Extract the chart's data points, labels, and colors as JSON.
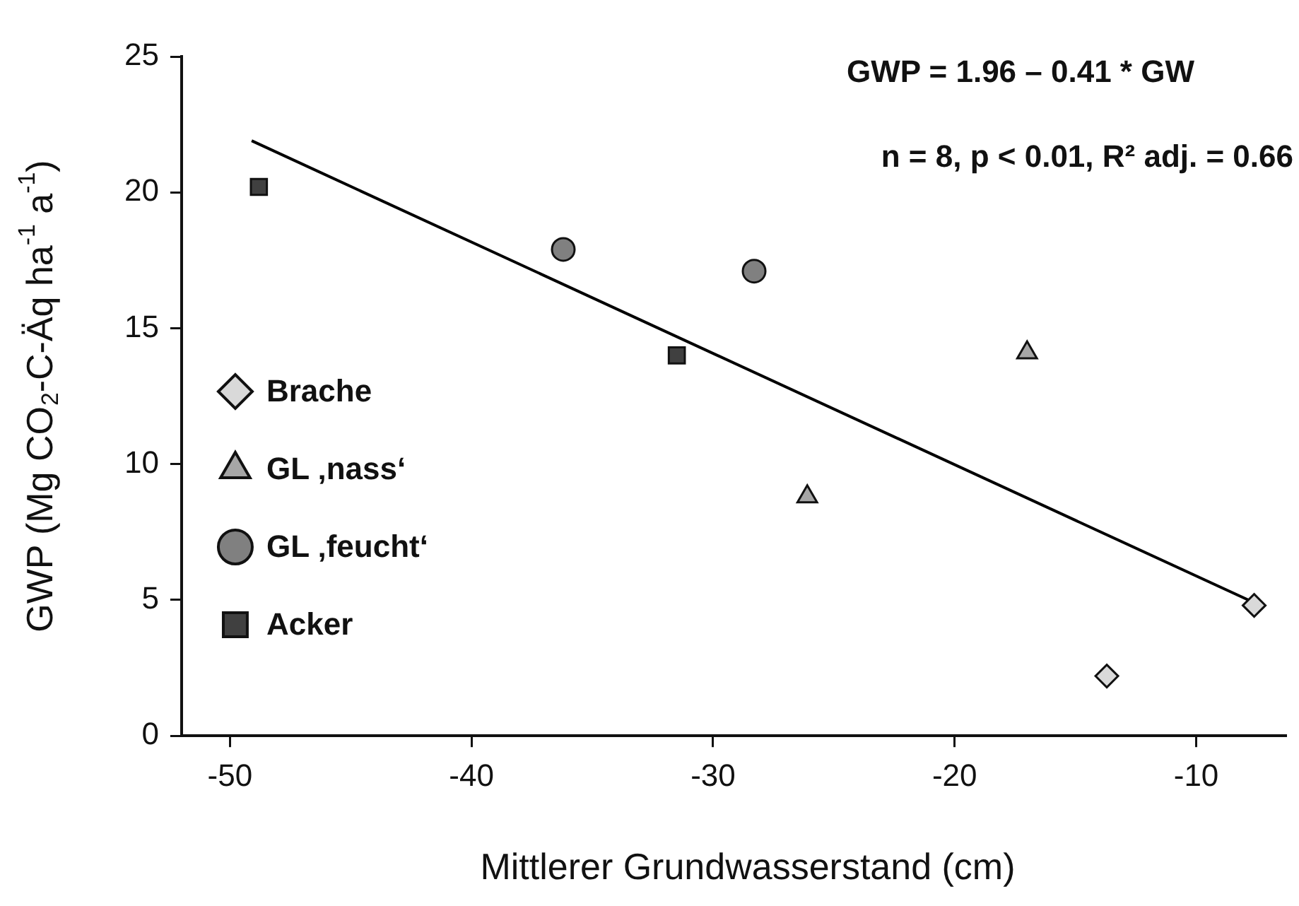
{
  "chart_data": {
    "type": "scatter",
    "xlabel": "Mittlerer Grundwasserstand (cm)",
    "ylabel": "GWP (Mg CO$_{2}$-C-Äq ha$^{-1}$ a$^{-1}$)",
    "xlim": [
      -52,
      -6.3
    ],
    "xticks": [
      -50,
      -40,
      -30,
      -20,
      -10
    ],
    "ylim": [
      0,
      25
    ],
    "yticks": [
      0,
      5,
      10,
      15,
      20,
      25
    ],
    "grid": false,
    "legend": "left",
    "annotations": [
      "GWP = 1.96 – 0.41 * GW",
      "n = 8, p < 0.01, R² adj. = 0.66"
    ],
    "series": [
      {
        "name": "Brache",
        "color": "#d9d9d9",
        "marker": "diamond",
        "x": [
          -7.6,
          -13.7
        ],
        "values": [
          4.8,
          2.2
        ]
      },
      {
        "name": "GL ‚nass‘",
        "color": "#a6a6a6",
        "marker": "triangle",
        "x": [
          -17.0,
          -26.1
        ],
        "values": [
          14.1,
          8.8
        ]
      },
      {
        "name": "GL ‚feucht‘",
        "color": "#808080",
        "marker": "circle",
        "x": [
          -36.2,
          -28.3
        ],
        "values": [
          17.9,
          17.1
        ]
      },
      {
        "name": "Acker",
        "color": "#404040",
        "marker": "square",
        "x": [
          -48.8,
          -31.5
        ],
        "values": [
          20.2,
          14.0
        ]
      },
      {
        "type": "line",
        "color": "#000000",
        "marker": "none",
        "x": [
          -49.1,
          -7.6
        ],
        "values": [
          21.9,
          4.9
        ]
      }
    ]
  }
}
